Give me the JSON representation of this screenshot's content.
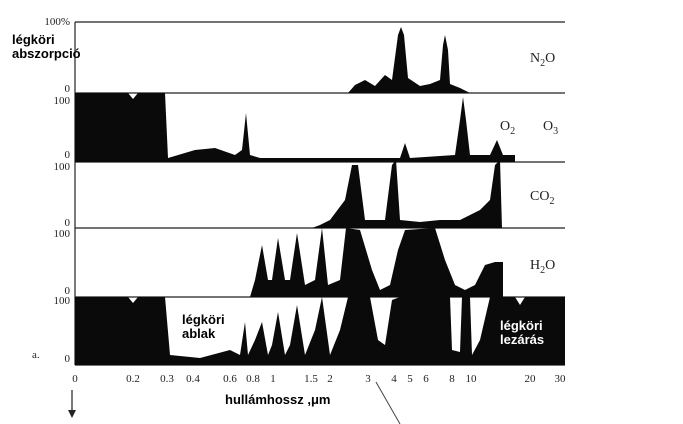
{
  "annotations": {
    "y_title": [
      "légköri",
      "abszorpció"
    ],
    "window": [
      "légköri",
      "ablak"
    ],
    "cutoff": [
      "légköri",
      "lezárás"
    ],
    "panel_marker": "a.",
    "x_title": "hullámhossz ,μm"
  },
  "panels": [
    {
      "gases": [
        [
          "N",
          "2",
          "O"
        ]
      ],
      "y_labels": [
        "100%",
        "0"
      ]
    },
    {
      "gases": [
        [
          "O",
          "2"
        ],
        [
          "O",
          "3"
        ]
      ],
      "y_labels": [
        "100",
        "0"
      ]
    },
    {
      "gases": [
        [
          "CO",
          "2"
        ]
      ],
      "y_labels": [
        "100",
        "0"
      ]
    },
    {
      "gases": [
        [
          "H",
          "2",
          "O"
        ]
      ],
      "y_labels": [
        "100",
        "0"
      ]
    },
    {
      "gases": [],
      "y_labels": [
        "100",
        "0"
      ]
    }
  ],
  "x_labels": [
    "0",
    "0.2",
    "0.3",
    "0.4",
    "0.6",
    "0.8",
    "1",
    "1.5",
    "2",
    "3",
    "4",
    "5",
    "6",
    "8",
    "10",
    "20",
    "30"
  ]
}
